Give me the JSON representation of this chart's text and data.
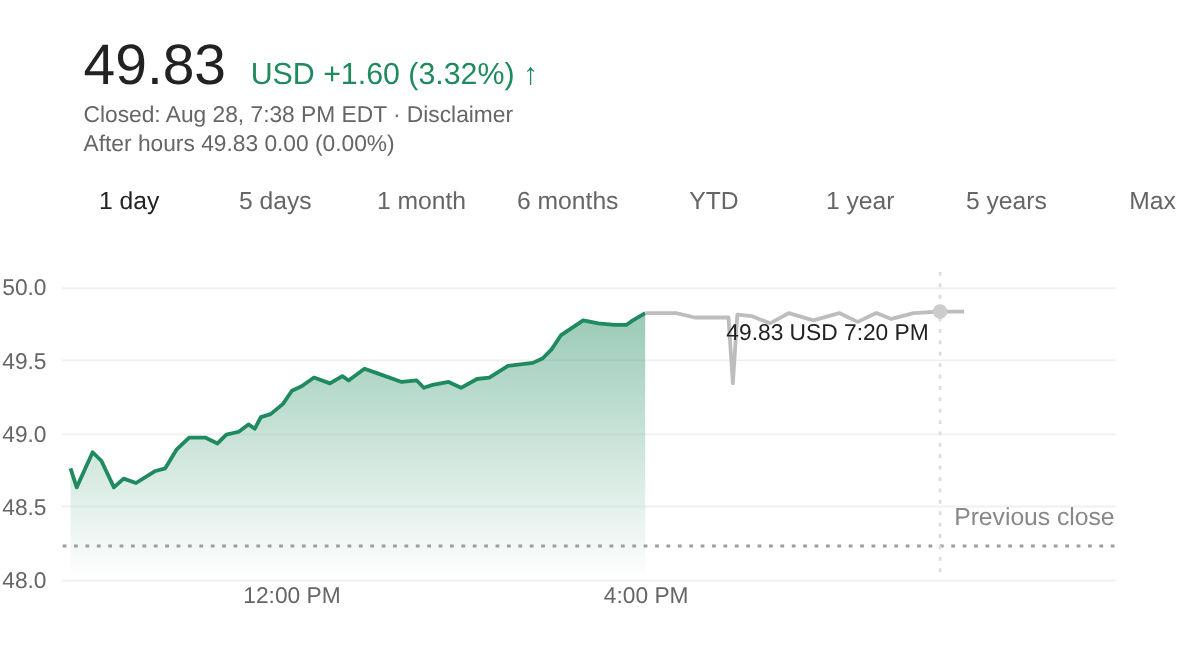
{
  "chart_data": {
    "type": "area",
    "title": "49.83",
    "subtitle": "USD +1.60 (3.32%) ↑",
    "annotations": [
      "Closed: Aug 28, 7:38 PM EDT · Disclaimer",
      "After hours 49.83 0.00 (0.00%)",
      "1 day",
      "5 days",
      "1 month",
      "6 months",
      "YTD",
      "1 year",
      "5 years",
      "Max",
      {
        "text": "49.83 USD  7:20 PM",
        "x": 19.33,
        "y": 49.83
      }
    ],
    "series": [
      {
        "color": "#1e8a5e",
        "x": [
          9.51,
          9.58,
          9.76,
          9.86,
          10.0,
          10.11,
          10.25,
          10.46,
          10.58,
          10.71,
          10.85,
          11.03,
          11.17,
          11.27,
          11.41,
          11.52,
          11.59,
          11.66,
          11.77,
          11.91,
          12.01,
          12.12,
          12.26,
          12.44,
          12.58,
          12.65,
          12.83,
          12.97,
          13.25,
          13.42,
          13.5,
          13.6,
          13.78,
          13.92,
          14.1,
          14.24,
          14.45,
          14.59,
          14.73,
          14.84,
          14.94,
          15.05,
          15.3,
          15.47,
          15.65,
          15.79,
          15.86,
          16.0
        ],
        "values": [
          48.76,
          48.63,
          48.87,
          48.81,
          48.63,
          48.69,
          48.66,
          48.74,
          48.76,
          48.89,
          48.97,
          48.97,
          48.93,
          48.99,
          49.01,
          49.06,
          49.03,
          49.11,
          49.13,
          49.2,
          49.29,
          49.32,
          49.38,
          49.34,
          49.39,
          49.36,
          49.44,
          49.41,
          49.35,
          49.36,
          49.31,
          49.33,
          49.35,
          49.31,
          49.37,
          49.38,
          49.46,
          49.47,
          49.48,
          49.51,
          49.57,
          49.67,
          49.77,
          49.75,
          49.74,
          49.74,
          49.77,
          49.82
        ]
      },
      {
        "type": "line",
        "color": "#bdbdbd",
        "x": [
          16.0,
          16.35,
          16.56,
          16.85,
          16.94,
          16.99,
          17.04,
          17.2,
          17.41,
          17.62,
          17.9,
          18.19,
          18.4,
          18.61,
          18.78,
          19.03,
          19.31,
          19.6
        ],
        "values": [
          49.82,
          49.82,
          49.79,
          49.79,
          49.79,
          49.34,
          49.81,
          49.8,
          49.75,
          49.82,
          49.77,
          49.82,
          49.76,
          49.82,
          49.78,
          49.82,
          49.83,
          49.83
        ]
      }
    ],
    "xlim": [
      9.4,
      21.3
    ],
    "xticks": [
      {
        "value": 12,
        "label": "12:00 PM"
      },
      {
        "value": 16,
        "label": "4:00 PM"
      }
    ],
    "ylim": [
      48.0,
      50.1
    ],
    "yticks": [
      {
        "value": 48,
        "label": "48.0"
      },
      {
        "value": 48.5,
        "label": "48.5"
      },
      {
        "value": 49,
        "label": "49.0"
      },
      {
        "value": 49.5,
        "label": "49.5"
      },
      {
        "value": 50,
        "label": "50.0"
      }
    ],
    "ref_lines": [
      {
        "axis": "y",
        "value": 48.23,
        "label": "Previous close",
        "color": "#9e9e9e",
        "line_style": "dotted"
      },
      {
        "axis": "x",
        "value": 19.33,
        "label": null,
        "color": "#dddddd",
        "line_style": "dotted"
      }
    ],
    "grid": "y",
    "marker": "none",
    "line_style": "solid"
  }
}
